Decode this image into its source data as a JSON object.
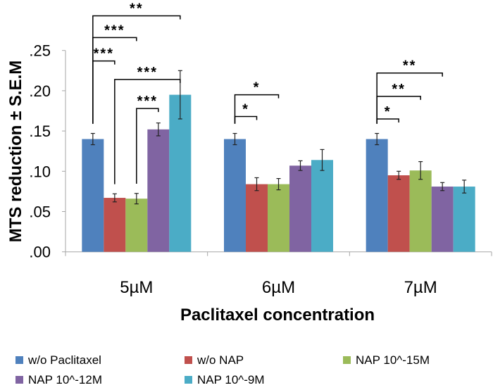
{
  "chart_data": {
    "type": "bar",
    "title": "",
    "xlabel": "Paclitaxel concentration",
    "ylabel": "MTS reduction ± S.E.M",
    "ylim": [
      0,
      0.25
    ],
    "yticks": [
      ".00",
      ".05",
      ".10",
      ".15",
      ".20",
      ".25"
    ],
    "ytick_values": [
      0,
      0.05,
      0.1,
      0.15,
      0.2,
      0.25
    ],
    "grid": false,
    "legend_position": "bottom",
    "categories": [
      "5µM",
      "6µM",
      "7µM"
    ],
    "series": [
      {
        "name": "w/o Paclitaxel",
        "color": "#4f81bd",
        "values": [
          0.14,
          0.14,
          0.14
        ],
        "errors": [
          0.007,
          0.007,
          0.007
        ]
      },
      {
        "name": "w/o NAP",
        "color": "#c0504d",
        "values": [
          0.067,
          0.084,
          0.095
        ],
        "errors": [
          0.005,
          0.008,
          0.005
        ]
      },
      {
        "name": "NAP 10^-15M",
        "color": "#9bbb59",
        "values": [
          0.066,
          0.084,
          0.101
        ],
        "errors": [
          0.0065,
          0.007,
          0.011
        ]
      },
      {
        "name": "NAP 10^-12M",
        "color": "#8064a2",
        "values": [
          0.152,
          0.107,
          0.081
        ],
        "errors": [
          0.008,
          0.006,
          0.005
        ]
      },
      {
        "name": "NAP 10^-9M",
        "color": "#4bacc6",
        "values": [
          0.195,
          0.114,
          0.081
        ],
        "errors": [
          0.03,
          0.013,
          0.008
        ]
      }
    ],
    "annotations": [
      {
        "category": 0,
        "from": 0,
        "to": 4,
        "level": 0.293,
        "label": "**"
      },
      {
        "category": 0,
        "from": 0,
        "to": 2,
        "level": 0.266,
        "label": "***"
      },
      {
        "category": 0,
        "from": 0,
        "to": 1,
        "level": 0.237,
        "label": "***"
      },
      {
        "category": 0,
        "from": 1,
        "to": 4,
        "level": 0.214,
        "label": "***"
      },
      {
        "category": 0,
        "from": 2,
        "to": 3,
        "level": 0.178,
        "label": "***"
      },
      {
        "category": 1,
        "from": 0,
        "to": 2,
        "level": 0.195,
        "label": "*"
      },
      {
        "category": 1,
        "from": 0,
        "to": 1,
        "level": 0.168,
        "label": "*"
      },
      {
        "category": 2,
        "from": 0,
        "to": 3,
        "level": 0.222,
        "label": "**"
      },
      {
        "category": 2,
        "from": 0,
        "to": 2,
        "level": 0.193,
        "label": "**"
      },
      {
        "category": 2,
        "from": 0,
        "to": 1,
        "level": 0.165,
        "label": "*"
      }
    ]
  }
}
